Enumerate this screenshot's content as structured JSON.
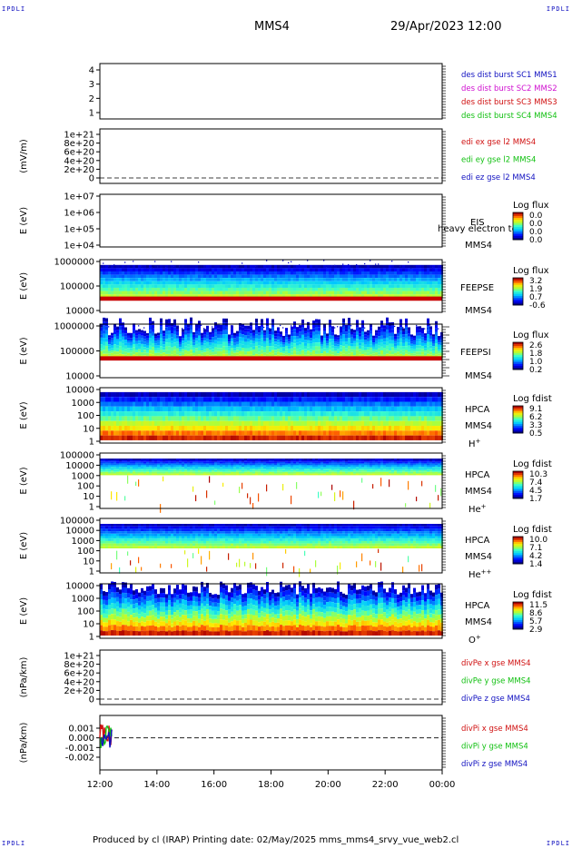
{
  "header": {
    "corner_tl": "IPDLI",
    "corner_tr": "IPDLI",
    "corner_bl": "IPDLI",
    "corner_br": "IPDLI",
    "title": "MMS4",
    "date": "29/Apr/2023 12:00"
  },
  "footer": {
    "text": "Produced by cl (IRAP)   Printing date: 02/May/2025   mms_mms4_srvy_vue_web2.cl"
  },
  "colors": {
    "red": "#d01010",
    "green": "#10c010",
    "blue": "#1010c0",
    "magenta": "#d010d0",
    "spec_bottom": "#c00000",
    "spec_top": "#1010c8"
  },
  "chart_data": [
    {
      "type": "line",
      "id": "panel1",
      "ylabel": "",
      "yticks": [
        "4",
        "3",
        "2",
        "1"
      ],
      "legend": [
        {
          "text": "des dist burst SC1 MMS1",
          "color": "#1010c0"
        },
        {
          "text": "des dist burst SC2 MMS2",
          "color": "#d010d0"
        },
        {
          "text": "des dist burst SC3 MMS3",
          "color": "#d01010"
        },
        {
          "text": "des dist burst SC4 MMS4",
          "color": "#10c010"
        }
      ]
    },
    {
      "type": "line",
      "id": "panel2",
      "ylabel": "(mV/m)",
      "yticks": [
        "1e+21",
        "8e+20",
        "6e+20",
        "4e+20",
        "2e+20",
        "0"
      ],
      "zero_dashed": true,
      "legend": [
        {
          "text": "edi ex gse l2 MMS4",
          "color": "#d01010"
        },
        {
          "text": "edi ey gse l2 MMS4",
          "color": "#10c010"
        },
        {
          "text": "edi ez gse l2 MMS4",
          "color": "#1010c0"
        }
      ]
    },
    {
      "type": "heatmap",
      "id": "panel3",
      "ylabel": "E (eV)",
      "yticks": [
        "1e+07",
        "1e+06",
        "1e+05",
        "1e+04"
      ],
      "instrument": [
        "EIS",
        "MMS4"
      ],
      "overlay_text": "heavy electron to",
      "cbar_title": "Log flux",
      "cbar_ticks": [
        "0.0",
        "0.0",
        "0.0",
        "0.0"
      ],
      "empty": true
    },
    {
      "type": "heatmap",
      "id": "panel4",
      "ylabel": "E (eV)",
      "yticks": [
        "1000000",
        "100000",
        "10000"
      ],
      "instrument": [
        "FEEPSE",
        "MMS4"
      ],
      "cbar_title": "Log flux",
      "cbar_ticks": [
        "3.2",
        "1.9",
        "0.7",
        "-0.6"
      ]
    },
    {
      "type": "heatmap",
      "id": "panel5",
      "ylabel": "E (eV)",
      "yticks": [
        "1000000",
        "100000",
        "10000"
      ],
      "instrument": [
        "FEEPSI",
        "MMS4"
      ],
      "cbar_title": "Log flux",
      "cbar_ticks": [
        "2.6",
        "1.8",
        "1.0",
        "0.2"
      ]
    },
    {
      "type": "heatmap",
      "id": "panel6",
      "ylabel": "E (eV)",
      "yticks": [
        "10000",
        "1000",
        "100",
        "10",
        "1"
      ],
      "instrument": [
        "HPCA",
        "MMS4"
      ],
      "species": "H",
      "species_sup": "+",
      "cbar_title": "Log fdist",
      "cbar_ticks": [
        "9.1",
        "6.2",
        "3.3",
        "0.5"
      ]
    },
    {
      "type": "heatmap",
      "id": "panel7",
      "ylabel": "E (eV)",
      "yticks": [
        "100000",
        "10000",
        "1000",
        "100",
        "10",
        "1"
      ],
      "instrument": [
        "HPCA",
        "MMS4"
      ],
      "species": "He",
      "species_sup": "+",
      "cbar_title": "Log fdist",
      "cbar_ticks": [
        "10.3",
        "7.4",
        "4.5",
        "1.7"
      ]
    },
    {
      "type": "heatmap",
      "id": "panel8",
      "ylabel": "E (eV)",
      "yticks": [
        "100000",
        "10000",
        "1000",
        "100",
        "10",
        "1"
      ],
      "instrument": [
        "HPCA",
        "MMS4"
      ],
      "species": "He",
      "species_sup": "++",
      "cbar_title": "Log fdist",
      "cbar_ticks": [
        "10.0",
        "7.1",
        "4.2",
        "1.4"
      ]
    },
    {
      "type": "heatmap",
      "id": "panel9",
      "ylabel": "E (eV)",
      "yticks": [
        "10000",
        "1000",
        "100",
        "10",
        "1"
      ],
      "instrument": [
        "HPCA",
        "MMS4"
      ],
      "species": "O",
      "species_sup": "+",
      "cbar_title": "Log fdist",
      "cbar_ticks": [
        "11.5",
        "8.6",
        "5.7",
        "2.9"
      ]
    },
    {
      "type": "line",
      "id": "panel10",
      "ylabel": "(nPa/km)",
      "yticks": [
        "1e+21",
        "8e+20",
        "6e+20",
        "4e+20",
        "2e+20",
        "0"
      ],
      "zero_dashed": true,
      "legend": [
        {
          "text": "divPe x gse MMS4",
          "color": "#d01010"
        },
        {
          "text": "divPe y gse MMS4",
          "color": "#10c010"
        },
        {
          "text": "divPe z gse MMS4",
          "color": "#1010c0"
        }
      ]
    },
    {
      "type": "line",
      "id": "panel11",
      "ylabel": "(nPa/km)",
      "yticks": [
        "0.001",
        "0.000",
        "-0.001",
        "-0.002"
      ],
      "zero_dashed": true,
      "legend": [
        {
          "text": "divPi x gse MMS4",
          "color": "#d01010"
        },
        {
          "text": "divPi y gse MMS4",
          "color": "#10c010"
        },
        {
          "text": "divPi z gse MMS4",
          "color": "#1010c0"
        }
      ]
    }
  ],
  "xaxis": {
    "ticks": [
      "12:00",
      "14:00",
      "16:00",
      "18:00",
      "20:00",
      "22:00",
      "00:00"
    ]
  }
}
